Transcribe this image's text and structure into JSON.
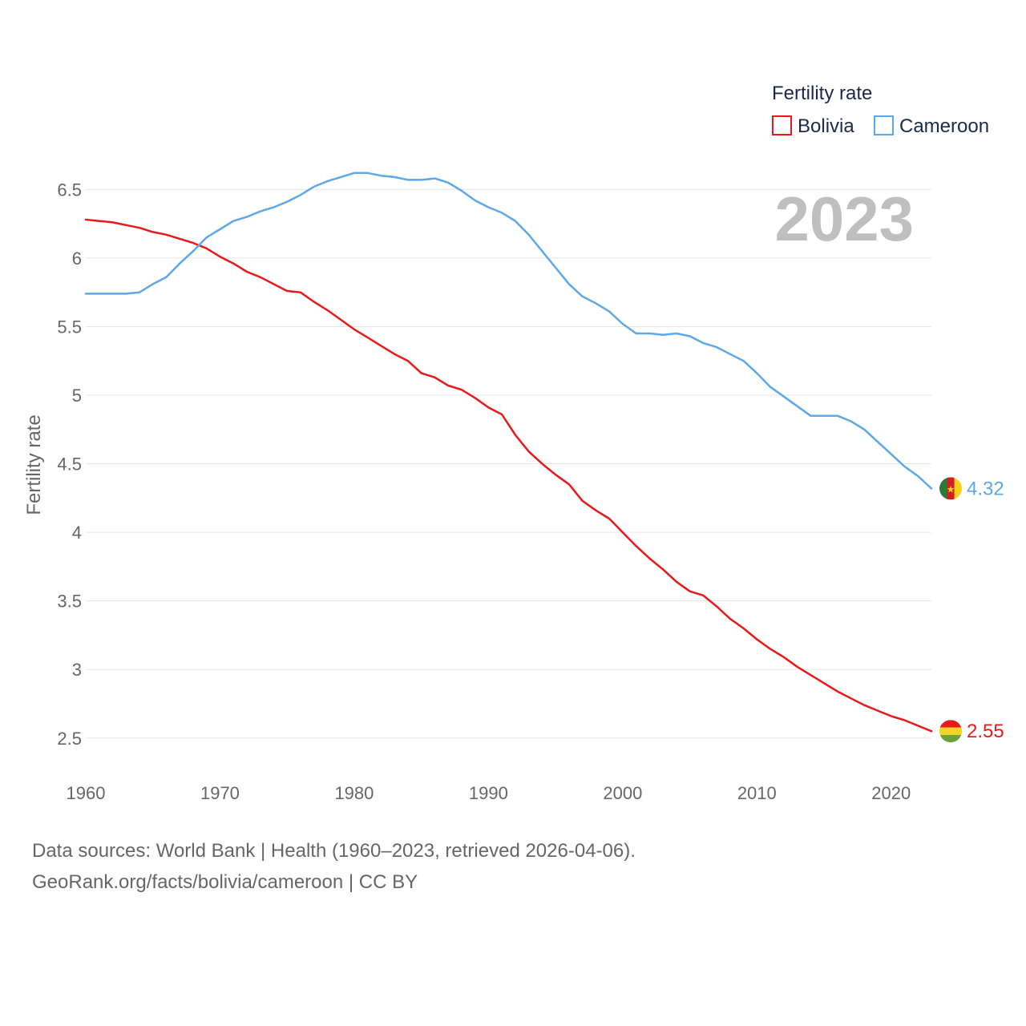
{
  "chart_data": {
    "type": "line",
    "ylabel": "Fertility rate",
    "xlabel": "",
    "year_label": "2023",
    "legend": {
      "title": "Fertility rate",
      "position": "top-right"
    },
    "xlim": [
      1960,
      2023
    ],
    "ylim": [
      2.3,
      6.8
    ],
    "xticks": [
      1960,
      1970,
      1980,
      1990,
      2000,
      2010,
      2020
    ],
    "yticks": [
      2.5,
      3,
      3.5,
      4,
      4.5,
      5,
      5.5,
      6,
      6.5
    ],
    "ytick_labels": [
      "2.5",
      "3",
      "3.5",
      "4",
      "4.5",
      "5",
      "5.5",
      "6",
      "6.5"
    ],
    "grid": true,
    "x": [
      1960,
      1961,
      1962,
      1963,
      1964,
      1965,
      1966,
      1967,
      1968,
      1969,
      1970,
      1971,
      1972,
      1973,
      1974,
      1975,
      1976,
      1977,
      1978,
      1979,
      1980,
      1981,
      1982,
      1983,
      1984,
      1985,
      1986,
      1987,
      1988,
      1989,
      1990,
      1991,
      1992,
      1993,
      1994,
      1995,
      1996,
      1997,
      1998,
      1999,
      2000,
      2001,
      2002,
      2003,
      2004,
      2005,
      2006,
      2007,
      2008,
      2009,
      2010,
      2011,
      2012,
      2013,
      2014,
      2015,
      2016,
      2017,
      2018,
      2019,
      2020,
      2021,
      2022,
      2023
    ],
    "series": [
      {
        "name": "Bolivia",
        "color": "#e8191a",
        "end_label": "2.55",
        "flag": "bolivia-flag-icon",
        "values": [
          6.28,
          6.27,
          6.26,
          6.24,
          6.22,
          6.19,
          6.17,
          6.14,
          6.11,
          6.07,
          6.01,
          5.96,
          5.9,
          5.86,
          5.81,
          5.76,
          5.75,
          5.68,
          5.62,
          5.55,
          5.48,
          5.42,
          5.36,
          5.3,
          5.25,
          5.16,
          5.13,
          5.07,
          5.04,
          4.98,
          4.91,
          4.86,
          4.71,
          4.59,
          4.5,
          4.42,
          4.35,
          4.23,
          4.16,
          4.1,
          4.0,
          3.9,
          3.81,
          3.73,
          3.64,
          3.57,
          3.54,
          3.46,
          3.37,
          3.3,
          3.22,
          3.15,
          3.09,
          3.02,
          2.96,
          2.9,
          2.84,
          2.79,
          2.74,
          2.7,
          2.66,
          2.63,
          2.59,
          2.55
        ]
      },
      {
        "name": "Cameroon",
        "color": "#5ea8e8",
        "end_label": "4.32",
        "flag": "cameroon-flag-icon",
        "values": [
          5.74,
          5.74,
          5.74,
          5.74,
          5.75,
          5.81,
          5.86,
          5.96,
          6.05,
          6.15,
          6.21,
          6.27,
          6.3,
          6.34,
          6.37,
          6.41,
          6.46,
          6.52,
          6.56,
          6.59,
          6.62,
          6.62,
          6.6,
          6.59,
          6.57,
          6.57,
          6.58,
          6.55,
          6.49,
          6.42,
          6.37,
          6.33,
          6.27,
          6.17,
          6.05,
          5.93,
          5.81,
          5.72,
          5.67,
          5.61,
          5.52,
          5.45,
          5.45,
          5.44,
          5.45,
          5.43,
          5.38,
          5.35,
          5.3,
          5.25,
          5.16,
          5.06,
          4.99,
          4.92,
          4.85,
          4.85,
          4.85,
          4.81,
          4.75,
          4.66,
          4.57,
          4.48,
          4.41,
          4.32
        ]
      }
    ]
  },
  "source": {
    "line1": "Data sources: World Bank | Health (1960–2023, retrieved 2026-04-06).",
    "line2": "GeoRank.org/facts/bolivia/cameroon | CC BY"
  }
}
